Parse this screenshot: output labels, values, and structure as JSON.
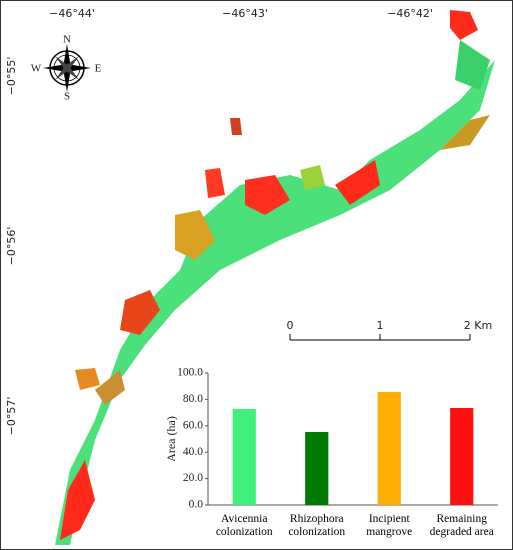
{
  "map": {
    "lon_labels": [
      "−46°44'",
      "−46°43'",
      "−46°42'"
    ],
    "lat_labels": [
      "−0°55'",
      "−0°56'",
      "−0°57'"
    ],
    "compass": {
      "n": "N",
      "e": "E",
      "s": "S",
      "w": "W"
    },
    "scale_labels": [
      "0",
      "1",
      "2 Km"
    ]
  },
  "chart_data": {
    "type": "bar",
    "y_label": "Area (ha)",
    "categories": [
      "Avicennia colonization",
      "Rhizophora colonization",
      "Incipient mangrove",
      "Remaining degraded area"
    ],
    "values": [
      72.7,
      55.3,
      85.6,
      73.5
    ],
    "colors": [
      "#3ff07a",
      "#007a00",
      "#ffad00",
      "#ff1010"
    ],
    "ylim": [
      0,
      100
    ],
    "yticks": [
      {
        "value": 0,
        "label": "0.0"
      },
      {
        "value": 20,
        "label": "20.0"
      },
      {
        "value": 40,
        "label": "40.0"
      },
      {
        "value": 60,
        "label": "60.0"
      },
      {
        "value": 80,
        "label": "80.0"
      },
      {
        "value": 100,
        "label": "100.0"
      }
    ]
  }
}
